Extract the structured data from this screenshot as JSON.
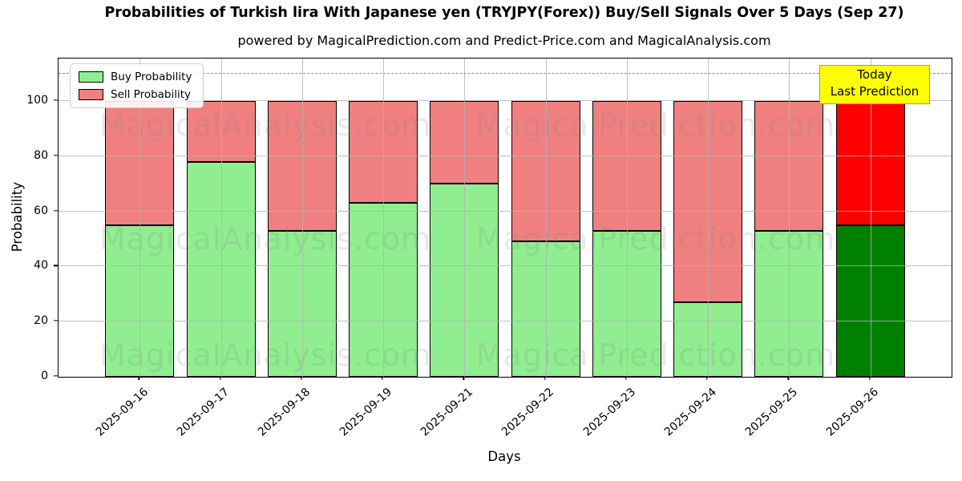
{
  "title": "Probabilities of Turkish lira With Japanese yen (TRYJPY(Forex)) Buy/Sell Signals Over 5 Days (Sep 27)",
  "subtitle": "powered by MagicalPrediction.com and Predict-Price.com and MagicalAnalysis.com",
  "chart_data": {
    "type": "bar",
    "stacked": true,
    "title": "Probabilities of Turkish lira With Japanese yen (TRYJPY(Forex)) Buy/Sell Signals Over 5 Days (Sep 27)",
    "categories": [
      "2025-09-16",
      "2025-09-17",
      "2025-09-18",
      "2025-09-19",
      "2025-09-21",
      "2025-09-22",
      "2025-09-23",
      "2025-09-24",
      "2025-09-25",
      "2025-09-26"
    ],
    "series": [
      {
        "name": "Buy Probability",
        "values": [
          55,
          78,
          53,
          63,
          70,
          49,
          53,
          27,
          53,
          55
        ],
        "color": "#90EE90",
        "today_color": "#008000"
      },
      {
        "name": "Sell Probability",
        "values": [
          45,
          22,
          47,
          37,
          30,
          51,
          47,
          73,
          47,
          45
        ],
        "color": "#F08080",
        "today_color": "#FF0000"
      }
    ],
    "xlabel": "Days",
    "ylabel": "Probability",
    "ylim": [
      0,
      115.4
    ],
    "yticks": [
      0,
      20,
      40,
      60,
      80,
      100
    ],
    "dashed_line_y": 110,
    "grid": true,
    "bar_width_fraction": 0.85,
    "legend_position": "upper-left",
    "today_index": 9,
    "annotation": {
      "lines": [
        "Today",
        "Last Prediction"
      ],
      "bg_color": "#FFFF00",
      "border_color": "#B8A000"
    },
    "watermarks": {
      "left_text": "MagicalAnalysis.com",
      "right_text": "MagicalPrediction.com"
    }
  },
  "colors": {
    "buy": "#90EE90",
    "sell": "#F08080",
    "today_buy": "#008000",
    "today_sell": "#FF0000",
    "grid": "#B0B0B0",
    "spine": "#000000",
    "watermark": "rgba(128,128,128,0.18)"
  }
}
